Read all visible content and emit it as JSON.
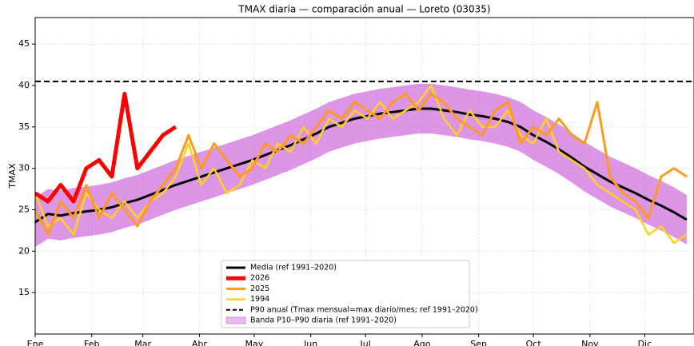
{
  "chart_data": {
    "type": "line",
    "title": "TMAX diaria — comparación anual — Loreto (03035)",
    "ylabel": "TMAX",
    "x": [
      1,
      8,
      15,
      22,
      29,
      36,
      43,
      50,
      57,
      64,
      71,
      78,
      85,
      92,
      99,
      106,
      113,
      120,
      127,
      134,
      141,
      148,
      155,
      162,
      169,
      176,
      183,
      190,
      197,
      204,
      211,
      218,
      225,
      232,
      239,
      246,
      253,
      260,
      267,
      274,
      281,
      288,
      295,
      302,
      309,
      316,
      323,
      330,
      337,
      344,
      351,
      358
    ],
    "xlim": [
      1,
      362
    ],
    "xticks": [
      {
        "value": 1,
        "label": "Ene"
      },
      {
        "value": 32,
        "label": "Feb"
      },
      {
        "value": 60,
        "label": "Mar"
      },
      {
        "value": 91,
        "label": "Abr"
      },
      {
        "value": 121,
        "label": "May"
      },
      {
        "value": 152,
        "label": "Jun"
      },
      {
        "value": 182,
        "label": "Jul"
      },
      {
        "value": 213,
        "label": "Ago"
      },
      {
        "value": 244,
        "label": "Sep"
      },
      {
        "value": 274,
        "label": "Oct"
      },
      {
        "value": 305,
        "label": "Nov"
      },
      {
        "value": 335,
        "label": "Dic"
      }
    ],
    "ylim": [
      10,
      48.2
    ],
    "yticks": [
      15,
      20,
      25,
      30,
      35,
      40,
      45
    ],
    "grid": true,
    "legend": "lower center",
    "band": {
      "name": "Banda P10–P90 diaria (ref 1991–2020)",
      "color": "#c040d0",
      "lower": [
        20.5,
        21.5,
        21.3,
        21.6,
        21.8,
        22,
        22.3,
        22.8,
        23.2,
        23.8,
        24.4,
        25,
        25.5,
        26,
        26.5,
        27,
        27.5,
        28,
        28.6,
        29.2,
        29.8,
        30.5,
        31.2,
        32,
        32.5,
        33,
        33.3,
        33.6,
        33.8,
        34,
        34.2,
        34.2,
        34,
        33.8,
        33.5,
        33.3,
        33,
        32.6,
        32,
        31,
        30.2,
        29.3,
        28.3,
        27.2,
        26.3,
        25.4,
        24.7,
        24,
        23.2,
        22.5,
        21.7,
        20.8
      ],
      "upper": [
        26.5,
        27.5,
        27.3,
        27.6,
        27.8,
        28,
        28.3,
        28.8,
        29.2,
        29.8,
        30.4,
        31,
        31.5,
        32,
        32.5,
        33,
        33.5,
        34,
        34.6,
        35.2,
        35.8,
        36.5,
        37.2,
        38,
        38.5,
        39,
        39.3,
        39.6,
        39.8,
        40,
        40.2,
        40.2,
        40,
        39.8,
        39.5,
        39.3,
        39,
        38.6,
        38,
        37,
        36.2,
        35.3,
        34.3,
        33.2,
        32.3,
        31.4,
        30.7,
        30,
        29.2,
        28.5,
        27.7,
        26.8
      ]
    },
    "series": [
      {
        "name": "Media (ref 1991–2020)",
        "color": "#000000",
        "linewidth": 3,
        "values": [
          23.5,
          24.5,
          24.3,
          24.6,
          24.8,
          25,
          25.3,
          25.8,
          26.2,
          26.8,
          27.4,
          28,
          28.5,
          29,
          29.5,
          30,
          30.5,
          31,
          31.6,
          32.2,
          32.8,
          33.5,
          34.2,
          35,
          35.5,
          36,
          36.3,
          36.6,
          36.8,
          37,
          37.2,
          37.2,
          37,
          36.8,
          36.5,
          36.3,
          36,
          35.6,
          35,
          34,
          33.2,
          32.3,
          31.3,
          30.2,
          29.3,
          28.4,
          27.7,
          27,
          26.2,
          25.5,
          24.7,
          23.8
        ]
      },
      {
        "name": "2026",
        "color": "#ff0000",
        "linewidth": 5,
        "values": [
          27,
          26,
          28,
          26,
          30,
          31,
          29,
          39,
          30,
          32,
          34,
          35,
          null,
          null,
          null,
          null,
          null,
          null,
          null,
          null,
          null,
          null,
          null,
          null,
          null,
          null,
          null,
          null,
          null,
          null,
          null,
          null,
          null,
          null,
          null,
          null,
          null,
          null,
          null,
          null,
          null,
          null,
          null,
          null,
          null,
          null,
          null,
          null,
          null,
          null,
          null,
          null
        ]
      },
      {
        "name": "2025",
        "color": "#ff9a1f",
        "linewidth": 3,
        "values": [
          25,
          22,
          26,
          24,
          28,
          24,
          27,
          25,
          23,
          26,
          28,
          30,
          34,
          30,
          33,
          31,
          29,
          30,
          33,
          32,
          34,
          33,
          35,
          37,
          36,
          38,
          37,
          36,
          38,
          39,
          37,
          39,
          38,
          36,
          35,
          34,
          37,
          38,
          33,
          35,
          34,
          36,
          34,
          33,
          38,
          29,
          27,
          26,
          24,
          29,
          30,
          29
        ]
      },
      {
        "name": "1994",
        "color": "#ffd21a",
        "linewidth": 2.5,
        "values": [
          27,
          23,
          24,
          22,
          27,
          25,
          24,
          26,
          24,
          26,
          27,
          29,
          33,
          28,
          30,
          27,
          28,
          31,
          30,
          33,
          32,
          35,
          33,
          36,
          35,
          37,
          36,
          38,
          36,
          37,
          38,
          40,
          36,
          34,
          37,
          35,
          35,
          37,
          34,
          33,
          36,
          32,
          31,
          30,
          28,
          27,
          26,
          25,
          22,
          23,
          21,
          22
        ]
      }
    ],
    "hlines": [
      {
        "name": "P90 anual (Tmax mensual=max diario/mes; ref 1991–2020)",
        "value": 40.5,
        "color": "#000000",
        "style": "dashed"
      }
    ]
  }
}
